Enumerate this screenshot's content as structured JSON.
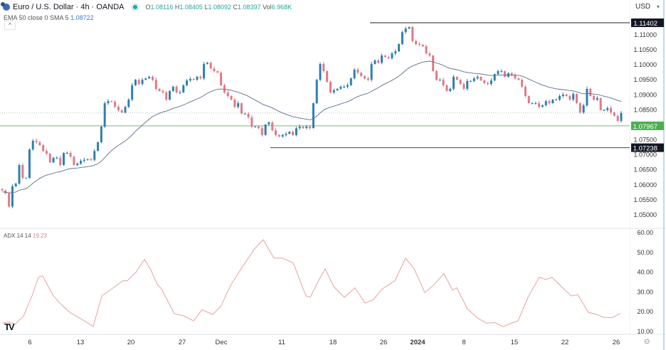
{
  "header": {
    "symbol_title": "Euro / U.S. Dollar · 4h · OANDA",
    "ohlc": [
      {
        "label": "O",
        "value": "1.08116"
      },
      {
        "label": "H",
        "value": "1.08405"
      },
      {
        "label": "L",
        "value": "1.08092"
      },
      {
        "label": "C",
        "value": "1.08397"
      },
      {
        "label": "Vol",
        "value": "6.968K"
      }
    ],
    "indicator_label": "EMA 50 close 0 SMA 5",
    "indicator_value": "1.08722",
    "collapse_icon": "^"
  },
  "currency_selector": {
    "label": "USD",
    "icon": "chevron-down-icon"
  },
  "adx_legend": {
    "label": "ADX 14 14",
    "value": "19.23"
  },
  "logo_text": "TV",
  "settings_icon": "⊙",
  "colors": {
    "up": "#2e7fb0",
    "down": "#e07a87",
    "ema": "#5a6f8a",
    "adx": "#e6a3a0",
    "support": "#6cc070",
    "level_label": "#131722",
    "support_label": "#4caf50"
  },
  "chart_data": [
    {
      "type": "candlestick",
      "title": "",
      "price_axis": {
        "ticks": [
          "1.11000",
          "1.10500",
          "1.10000",
          "1.09500",
          "1.09000",
          "1.08500",
          "1.07500",
          "1.07000",
          "1.06500",
          "1.06000",
          "1.05500",
          "1.05000"
        ],
        "ylim": [
          1.0457,
          1.1216
        ]
      },
      "x_ticks": [
        {
          "t": 7.8,
          "label": "6"
        },
        {
          "t": 22,
          "label": "13"
        },
        {
          "t": 36.2,
          "label": "20"
        },
        {
          "t": 50.6,
          "label": "27"
        },
        {
          "t": 61.6,
          "label": "Dec"
        },
        {
          "t": 78.6,
          "label": "11"
        },
        {
          "t": 93,
          "label": "18"
        },
        {
          "t": 107.2,
          "label": "26"
        },
        {
          "t": 116.8,
          "label": "2024",
          "bold": true
        },
        {
          "t": 129.8,
          "label": "8"
        },
        {
          "t": 144,
          "label": "15"
        },
        {
          "t": 158.2,
          "label": "22"
        },
        {
          "t": 172.6,
          "label": "26"
        }
      ],
      "x_span": [
        0,
        174
      ],
      "closes": [
        1.0581,
        1.0571,
        1.0528,
        1.0595,
        1.0604,
        1.0666,
        1.0623,
        1.0623,
        1.0718,
        1.0747,
        1.0742,
        1.0732,
        1.0713,
        1.0704,
        1.0675,
        1.069,
        1.069,
        1.0666,
        1.0706,
        1.0706,
        1.0694,
        1.0666,
        1.0671,
        1.068,
        1.0683,
        1.0685,
        1.0683,
        1.0713,
        1.0742,
        1.0794,
        1.0872,
        1.0879,
        1.0877,
        1.086,
        1.0849,
        1.0841,
        1.086,
        1.0884,
        1.0932,
        1.095,
        1.0936,
        1.095,
        1.0955,
        1.096,
        1.095,
        1.092,
        1.0913,
        1.0908,
        1.0884,
        1.0913,
        1.0927,
        1.0908,
        1.0908,
        1.0932,
        1.0948,
        1.0953,
        1.095,
        1.096,
        1.0955,
        1.1003,
        1.1007,
        1.0988,
        1.0979,
        1.0974,
        1.0932,
        1.0908,
        1.0896,
        1.0884,
        1.086,
        1.0872,
        1.0837,
        1.0837,
        1.0825,
        1.0794,
        1.0794,
        1.0789,
        1.0766,
        1.0801,
        1.0808,
        1.0782,
        1.0766,
        1.0761,
        1.0766,
        1.077,
        1.0777,
        1.0766,
        1.0789,
        1.0794,
        1.0789,
        1.0794,
        1.0789,
        1.0872,
        1.095,
        1.1003,
        1.0979,
        1.0943,
        1.0908,
        1.0915,
        1.092,
        1.0927,
        1.0927,
        1.0932,
        1.0955,
        1.0984,
        1.0974,
        1.0962,
        1.0955,
        1.095,
        1.1003,
        1.1015,
        1.1007,
        1.1031,
        1.1026,
        1.1022,
        1.1038,
        1.1045,
        1.1069,
        1.1109,
        1.1121,
        1.1126,
        1.1079,
        1.1069,
        1.1067,
        1.1062,
        1.1038,
        1.1031,
        1.0979,
        1.095,
        1.095,
        1.0932,
        1.0913,
        1.092,
        1.096,
        1.095,
        1.0936,
        1.092,
        1.0946,
        1.0946,
        1.0955,
        1.096,
        1.0948,
        1.0939,
        1.0936,
        1.0948,
        1.0969,
        1.0979,
        1.0979,
        1.096,
        1.0972,
        1.0965,
        1.0955,
        1.095,
        1.0927,
        1.0896,
        1.0872,
        1.0872,
        1.0872,
        1.086,
        1.0865,
        1.0879,
        1.0872,
        1.0884,
        1.0884,
        1.0896,
        1.0901,
        1.0896,
        1.0884,
        1.0903,
        1.0872,
        1.0841,
        1.0865,
        1.092,
        1.0896,
        1.0884,
        1.0889,
        1.0849,
        1.0849,
        1.0856,
        1.0841,
        1.083,
        1.0813,
        1.08397
      ],
      "ema_label": "EMA 50",
      "levels": [
        {
          "price": 1.11402,
          "label": "1.11402",
          "kind": "resistance"
        },
        {
          "price": 1.07967,
          "label": "1.07967",
          "kind": "support"
        },
        {
          "price": 1.07238,
          "label": "1.07238",
          "kind": "low"
        },
        {
          "price": 1.08397,
          "label": "",
          "kind": "last-price"
        }
      ]
    },
    {
      "type": "line",
      "title": "ADX 14 14",
      "ylim": [
        10,
        60
      ],
      "y_ticks": [
        "60.00",
        "50.00",
        "40.00",
        "30.00",
        "20.00",
        "10.00"
      ],
      "points": [
        [
          0,
          14.2
        ],
        [
          1.8,
          14.8
        ],
        [
          3.6,
          13.6
        ],
        [
          6,
          17.8
        ],
        [
          8.4,
          28
        ],
        [
          10.2,
          37.5
        ],
        [
          11.4,
          38.1
        ],
        [
          14.4,
          28
        ],
        [
          16.2,
          24.4
        ],
        [
          19.1,
          19.6
        ],
        [
          22,
          16.6
        ],
        [
          25.6,
          12.6
        ],
        [
          28,
          28
        ],
        [
          31,
          31.8
        ],
        [
          34,
          35.7
        ],
        [
          35.2,
          35.7
        ],
        [
          37.6,
          39.9
        ],
        [
          40,
          46.5
        ],
        [
          41.8,
          41.1
        ],
        [
          43.6,
          33.9
        ],
        [
          44.8,
          31.5
        ],
        [
          48.4,
          19
        ],
        [
          50.8,
          18.1
        ],
        [
          53.8,
          15.4
        ],
        [
          56.2,
          21
        ],
        [
          59.2,
          18.6
        ],
        [
          61.4,
          22.6
        ],
        [
          64.4,
          33.9
        ],
        [
          67.4,
          42.3
        ],
        [
          71,
          51.9
        ],
        [
          73.4,
          56.4
        ],
        [
          76.4,
          47.1
        ],
        [
          78.8,
          47.1
        ],
        [
          81.8,
          44.7
        ],
        [
          85.4,
          28
        ],
        [
          86.6,
          27.3
        ],
        [
          88.4,
          33.9
        ],
        [
          90.8,
          41.7
        ],
        [
          93.2,
          32.7
        ],
        [
          96.2,
          27.3
        ],
        [
          99.2,
          32.1
        ],
        [
          102,
          24.4
        ],
        [
          104.4,
          26.2
        ],
        [
          106.8,
          31.5
        ],
        [
          110.4,
          35.7
        ],
        [
          113.4,
          47.1
        ],
        [
          115.8,
          41.7
        ],
        [
          118.8,
          29.7
        ],
        [
          121.2,
          33.3
        ],
        [
          124.2,
          39.3
        ],
        [
          126.6,
          30.9
        ],
        [
          127.8,
          32.1
        ],
        [
          130.8,
          21.4
        ],
        [
          133.8,
          16.6
        ],
        [
          136.2,
          14.2
        ],
        [
          138.6,
          14.5
        ],
        [
          140.8,
          12.4
        ],
        [
          142.6,
          13.8
        ],
        [
          145,
          15.4
        ],
        [
          148,
          28
        ],
        [
          151,
          37.5
        ],
        [
          152.8,
          36.3
        ],
        [
          154.6,
          37.3
        ],
        [
          158.2,
          30.9
        ],
        [
          160,
          28
        ],
        [
          161.8,
          28.6
        ],
        [
          164.8,
          19.6
        ],
        [
          166.6,
          19
        ],
        [
          169,
          17.2
        ],
        [
          171.4,
          16.9
        ],
        [
          173.8,
          19.23
        ]
      ]
    }
  ]
}
